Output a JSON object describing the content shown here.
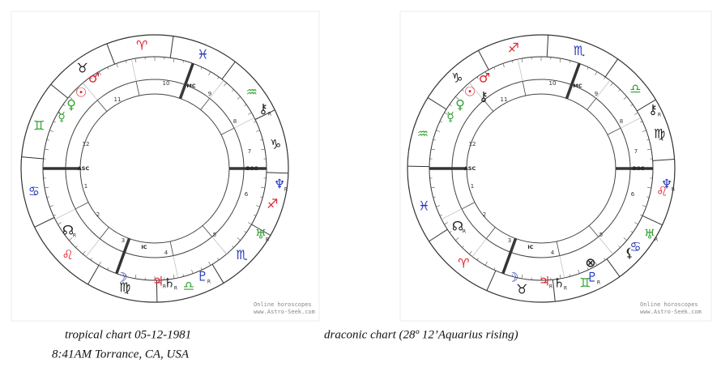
{
  "left": {
    "caption": [
      "tropical chart 05-12-1981",
      "8:41AM Torrance, CA, USA"
    ],
    "signs": [
      {
        "glyph": "♈",
        "color": "#e0202a"
      },
      {
        "glyph": "♉",
        "color": "#222222"
      },
      {
        "glyph": "♊",
        "color": "#33a033"
      },
      {
        "glyph": "♋",
        "color": "#2233bb"
      },
      {
        "glyph": "♌",
        "color": "#e0202a"
      },
      {
        "glyph": "♍",
        "color": "#222222"
      },
      {
        "glyph": "♎",
        "color": "#33a033"
      },
      {
        "glyph": "♏",
        "color": "#2233bb"
      },
      {
        "glyph": "♐",
        "color": "#e0202a"
      },
      {
        "glyph": "♑",
        "color": "#222222"
      },
      {
        "glyph": "♒",
        "color": "#33a033"
      },
      {
        "glyph": "♓",
        "color": "#2233bb"
      }
    ],
    "planets": [
      {
        "glyph": "♂",
        "color": "#e0202a"
      },
      {
        "glyph": "☉",
        "color": "#e0202a"
      },
      {
        "glyph": "♀",
        "color": "#33a033"
      },
      {
        "glyph": "☿",
        "color": "#33a033"
      },
      {
        "glyph": "☊",
        "color": "#222222",
        "retro": "R"
      },
      {
        "glyph": "☽",
        "color": "#2233bb"
      },
      {
        "glyph": "♃",
        "color": "#e0202a",
        "retro": "R"
      },
      {
        "glyph": "♄",
        "color": "#222222",
        "retro": "R"
      },
      {
        "glyph": "♇",
        "color": "#2233bb",
        "retro": "R"
      },
      {
        "glyph": "♆",
        "color": "#2233bb",
        "retro": "R"
      },
      {
        "glyph": "♅",
        "color": "#33a033",
        "retro": "R"
      },
      {
        "glyph": "⚷",
        "color": "#222222",
        "retro": "R"
      }
    ],
    "houses": [
      "1",
      "2",
      "3",
      "4",
      "5",
      "6",
      "7",
      "8",
      "9",
      "10",
      "11",
      "12"
    ],
    "angles": {
      "asc": "ASC",
      "dsc": "DSC",
      "mc": "MC",
      "ic": "IC"
    },
    "watermark": [
      "Online horoscopes",
      "www.Astro-Seek.com"
    ]
  },
  "right": {
    "caption": [
      "draconic chart (28º 12’Aquarius rising)"
    ],
    "signs": [
      {
        "glyph": "♈",
        "color": "#e0202a"
      },
      {
        "glyph": "♉",
        "color": "#222222"
      },
      {
        "glyph": "♊",
        "color": "#33a033"
      },
      {
        "glyph": "♋",
        "color": "#2233bb"
      },
      {
        "glyph": "♌",
        "color": "#e0202a"
      },
      {
        "glyph": "♍",
        "color": "#222222"
      },
      {
        "glyph": "♎",
        "color": "#33a033"
      },
      {
        "glyph": "♏",
        "color": "#2233bb"
      },
      {
        "glyph": "♐",
        "color": "#e0202a"
      },
      {
        "glyph": "♑",
        "color": "#222222"
      },
      {
        "glyph": "♒",
        "color": "#33a033"
      },
      {
        "glyph": "♓",
        "color": "#2233bb"
      }
    ],
    "planets": [
      {
        "glyph": "♂",
        "color": "#e0202a"
      },
      {
        "glyph": "☉",
        "color": "#e0202a"
      },
      {
        "glyph": "♀",
        "color": "#33a033"
      },
      {
        "glyph": "☿",
        "color": "#33a033"
      },
      {
        "glyph": "⚷",
        "color": "#222222"
      },
      {
        "glyph": "☊",
        "color": "#222222",
        "retro": "R"
      },
      {
        "glyph": "☽",
        "color": "#2233bb"
      },
      {
        "glyph": "♃",
        "color": "#e0202a",
        "retro": "R"
      },
      {
        "glyph": "♄",
        "color": "#222222",
        "retro": "R"
      },
      {
        "glyph": "⊗",
        "color": "#222222"
      },
      {
        "glyph": "♇",
        "color": "#2233bb",
        "retro": "R"
      },
      {
        "glyph": "♆",
        "color": "#2233bb",
        "retro": "R"
      },
      {
        "glyph": "♅",
        "color": "#33a033",
        "retro": "R"
      },
      {
        "glyph": "⚸",
        "color": "#222222"
      },
      {
        "glyph": "⚷",
        "color": "#222222",
        "retro": "R"
      }
    ],
    "houses": [
      "1",
      "2",
      "3",
      "4",
      "5",
      "6",
      "7",
      "8",
      "9",
      "10",
      "11",
      "12"
    ],
    "angles": {
      "asc": "ASC",
      "dsc": "DSC",
      "mc": "MC",
      "ic": "IC"
    },
    "watermark": [
      "Online horoscopes",
      "www.Astro-Seek.com"
    ]
  }
}
